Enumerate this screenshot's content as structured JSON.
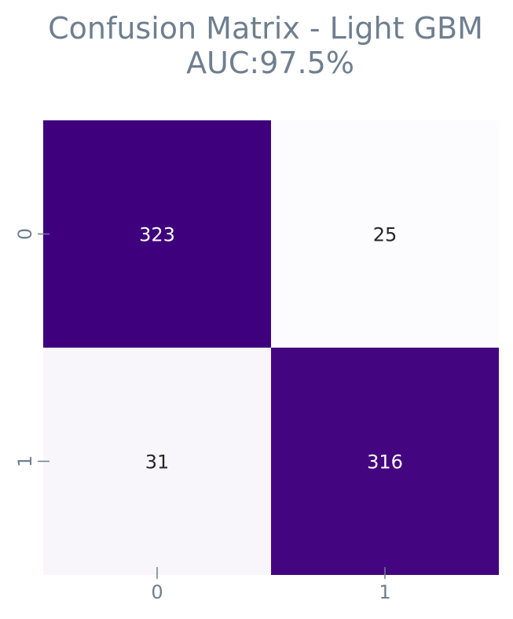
{
  "chart_data": {
    "type": "heatmap",
    "title": "Confusion Matrix - Light GBM",
    "subtitle": "AUC:97.5%",
    "row_labels": [
      "0",
      "1"
    ],
    "col_labels": [
      "0",
      "1"
    ],
    "values": [
      [
        323,
        25
      ],
      [
        31,
        316
      ]
    ],
    "colormap": "Purples",
    "colorbar": false,
    "colors": {
      "high": "#3f007d",
      "low": "#fcfbfd",
      "text_on_dark": "#ffffff",
      "text_on_light": "#262626",
      "axis_text": "#6e7f8f"
    }
  }
}
